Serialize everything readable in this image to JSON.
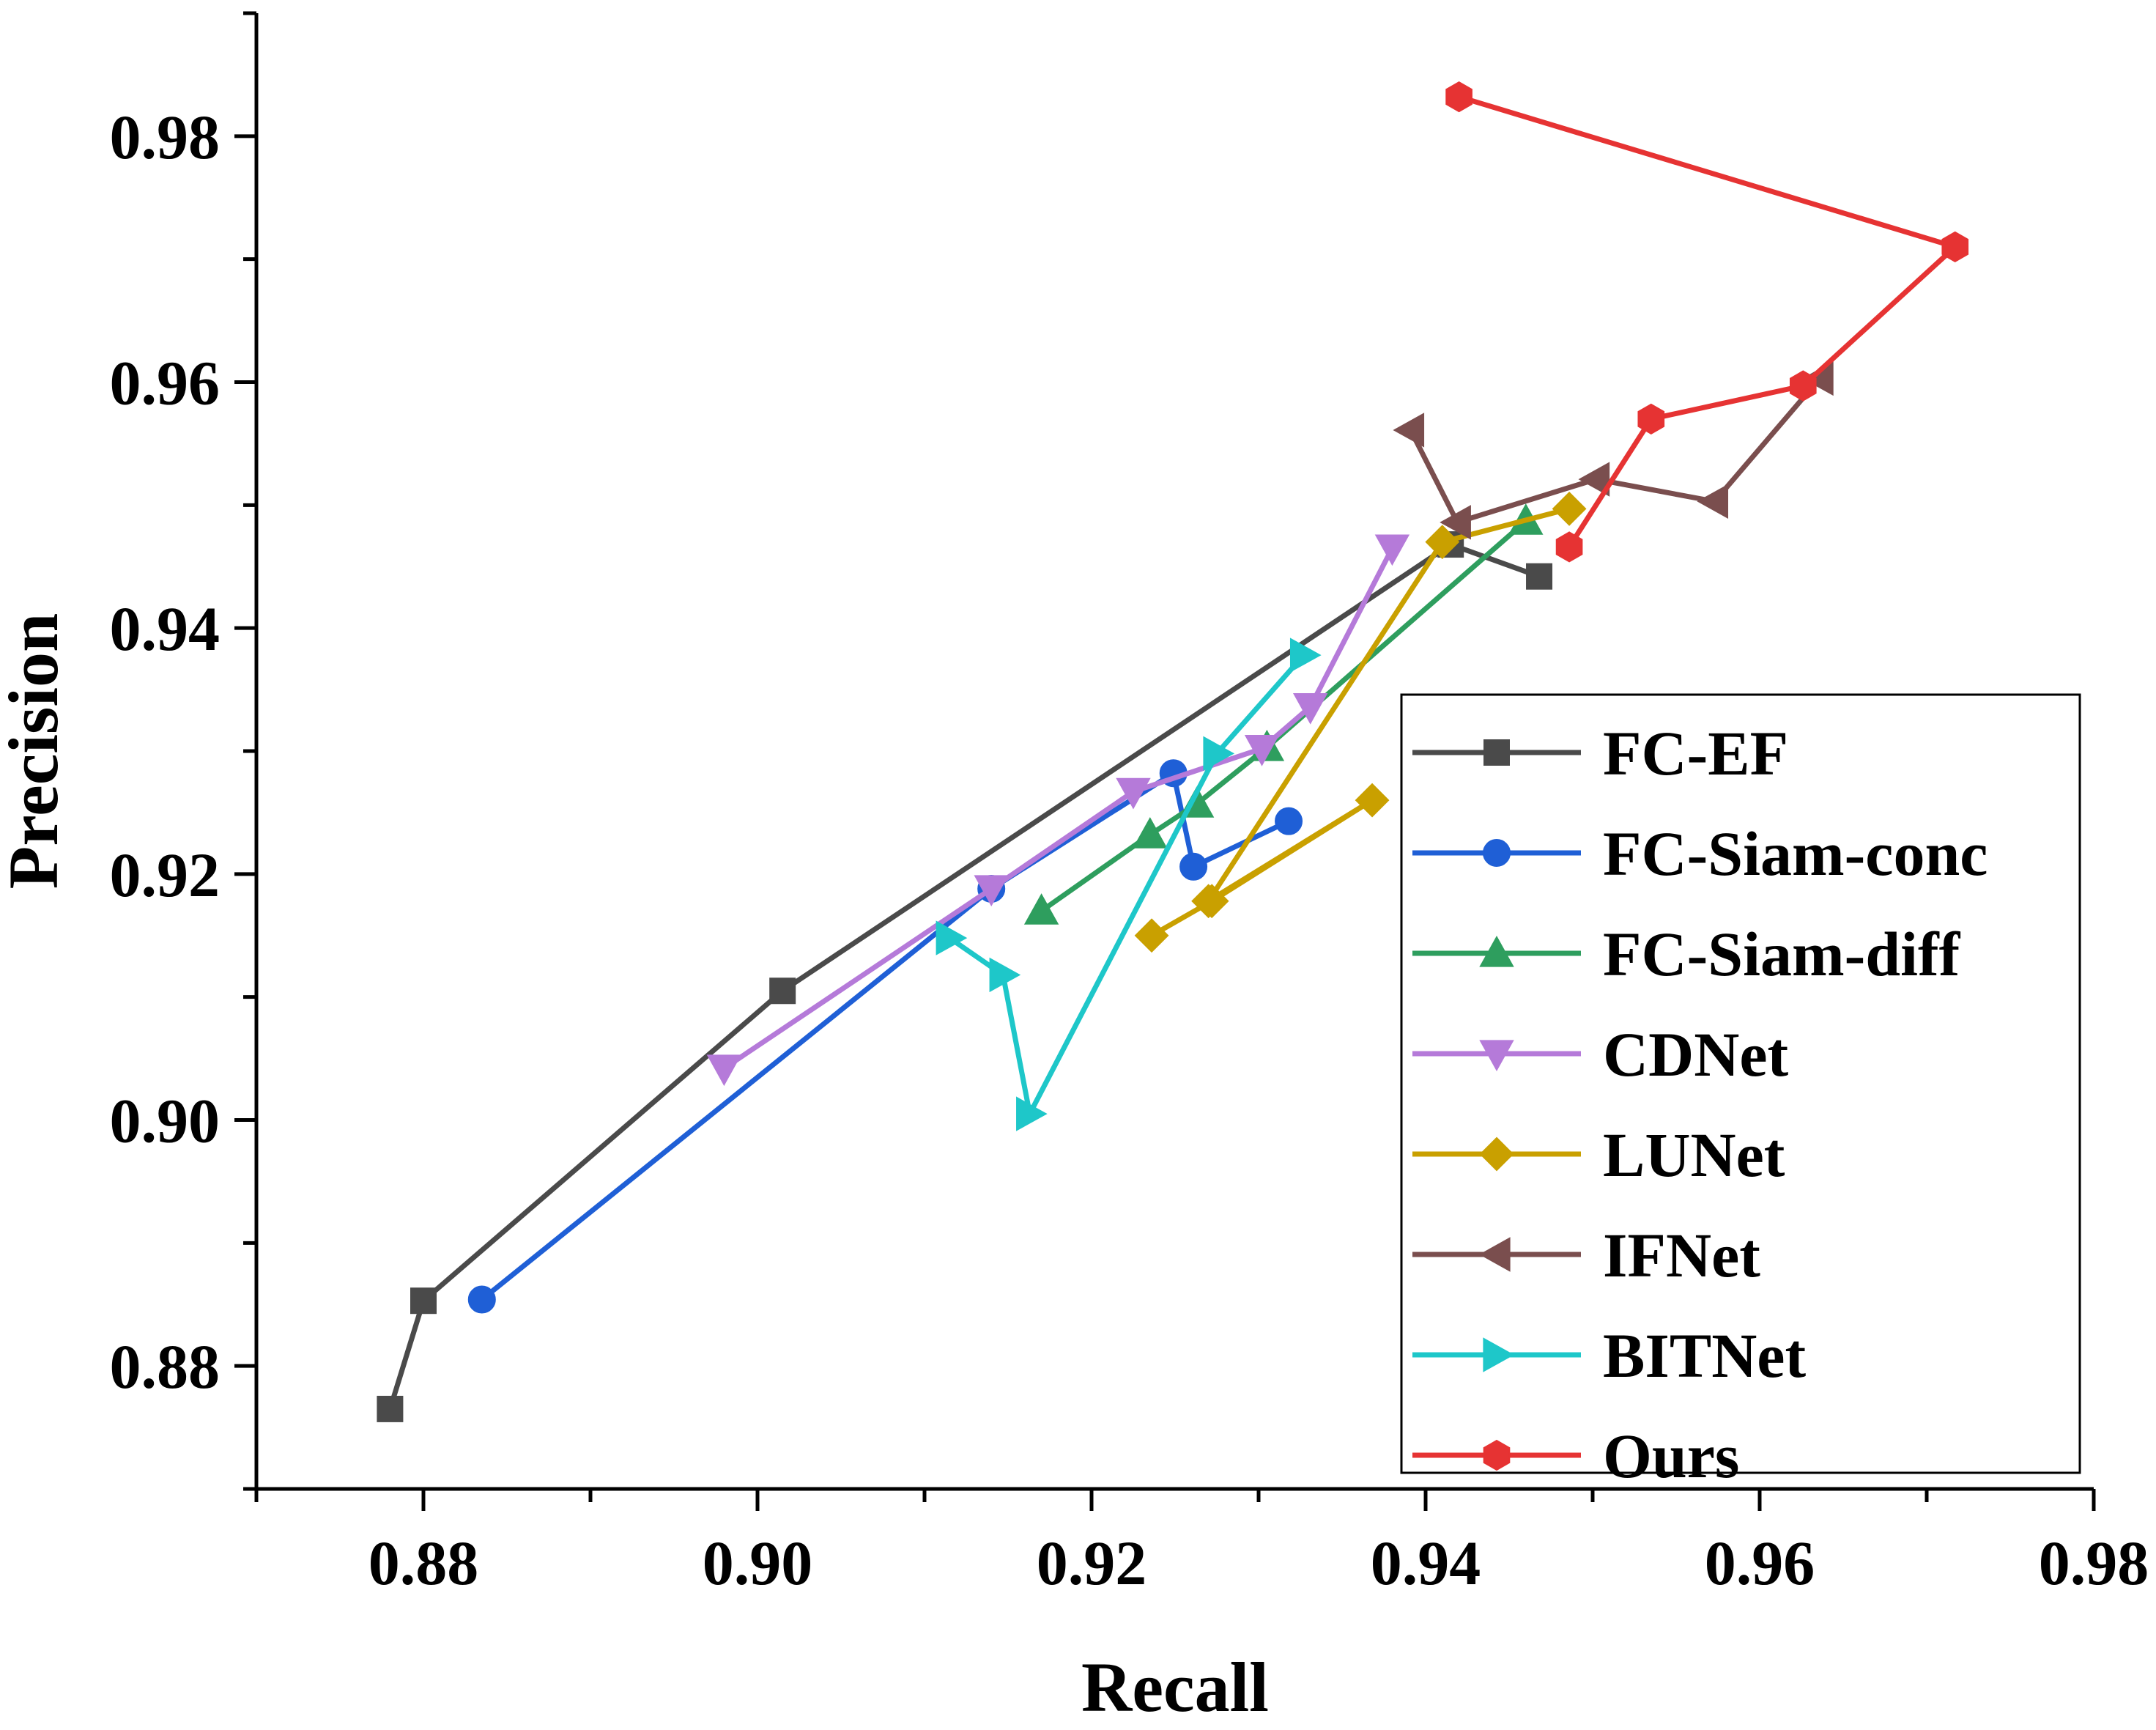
{
  "chart_data": {
    "type": "line",
    "title": "",
    "xlabel": "Recall",
    "ylabel": "Precision",
    "xlim": [
      0.87,
      0.98
    ],
    "ylim": [
      0.87,
      0.99
    ],
    "xticks": [
      0.88,
      0.9,
      0.92,
      0.94,
      0.96,
      0.98
    ],
    "yticks": [
      0.88,
      0.9,
      0.92,
      0.94,
      0.96,
      0.98
    ],
    "xtick_labels": [
      "0.88",
      "0.90",
      "0.92",
      "0.94",
      "0.96",
      "0.98"
    ],
    "ytick_labels": [
      "0.88",
      "0.90",
      "0.92",
      "0.94",
      "0.96",
      "0.98"
    ],
    "grid": false,
    "legend_position": "right",
    "series": [
      {
        "name": "FC-EF",
        "color": "#4a4a4a",
        "marker": "square",
        "x": [
          0.878,
          0.88,
          0.9015,
          0.9415,
          0.9468
        ],
        "y": [
          0.8765,
          0.8853,
          0.9105,
          0.9468,
          0.9442
        ]
      },
      {
        "name": "FC-Siam-conc",
        "color": "#1f5fd6",
        "marker": "circle",
        "x": [
          0.8835,
          0.914,
          0.9249,
          0.9261,
          0.9318
        ],
        "y": [
          0.8854,
          0.9188,
          0.9282,
          0.9206,
          0.9243
        ]
      },
      {
        "name": "FC-Siam-diff",
        "color": "#2e9e5e",
        "marker": "triangle-up",
        "x": [
          0.917,
          0.9235,
          0.9263,
          0.9305,
          0.946
        ],
        "y": [
          0.917,
          0.9232,
          0.9257,
          0.9303,
          0.9487
        ]
      },
      {
        "name": "CDNet",
        "color": "#b57ad9",
        "marker": "triangle-down",
        "x": [
          0.898,
          0.914,
          0.9225,
          0.9302,
          0.9331,
          0.938
        ],
        "y": [
          0.9042,
          0.9188,
          0.9267,
          0.9302,
          0.9336,
          0.9465
        ]
      },
      {
        "name": "LUNet",
        "color": "#c9a000",
        "marker": "diamond",
        "x": [
          0.9236,
          0.9272,
          0.9368,
          0.927,
          0.941,
          0.9486
        ],
        "y": [
          0.915,
          0.9178,
          0.926,
          0.9178,
          0.947,
          0.9497
        ]
      },
      {
        "name": "IFNet",
        "color": "#7a4e4e",
        "marker": "triangle-left",
        "x": [
          0.9391,
          0.9419,
          0.9502,
          0.9573,
          0.9636
        ],
        "y": [
          0.9561,
          0.9486,
          0.9521,
          0.9503,
          0.9603
        ]
      },
      {
        "name": "BITNet",
        "color": "#1ec7c9",
        "marker": "triangle-right",
        "x": [
          0.9115,
          0.9147,
          0.9163,
          0.9275,
          0.9327
        ],
        "y": [
          0.9148,
          0.9118,
          0.9005,
          0.9298,
          0.9378
        ]
      },
      {
        "name": "Ours",
        "color": "#e63333",
        "marker": "hexagon",
        "x": [
          0.942,
          0.9717,
          0.9626,
          0.9535,
          0.9486
        ],
        "y": [
          0.9832,
          0.971,
          0.9597,
          0.957,
          0.9466
        ]
      }
    ]
  }
}
